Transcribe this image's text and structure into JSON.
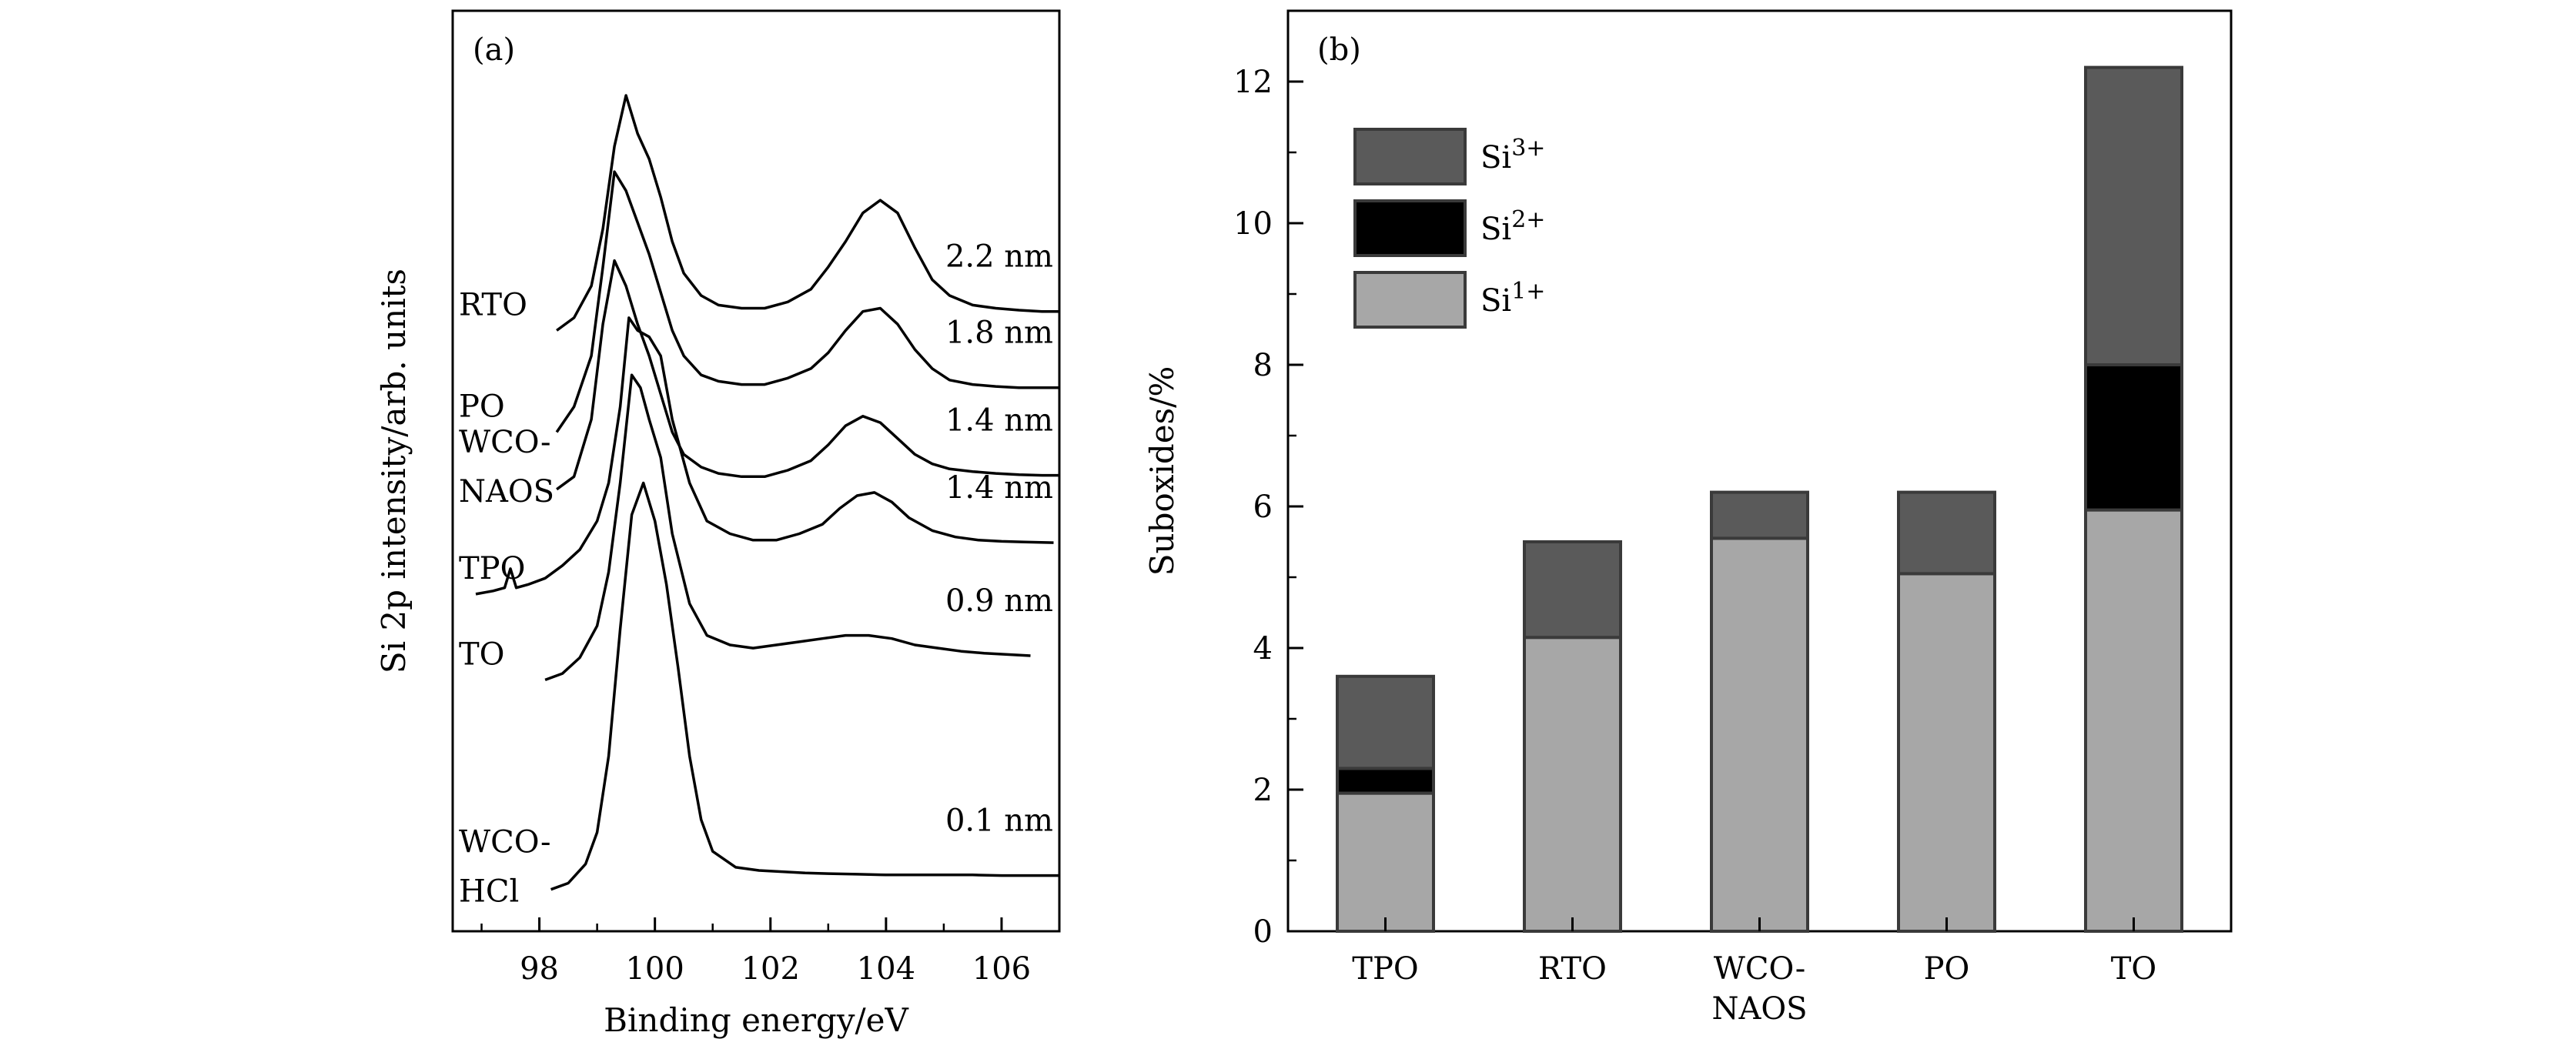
{
  "chart_data": [
    {
      "type": "line",
      "panel_label": "(a)",
      "xlabel": "Binding energy/eV",
      "ylabel": "Si 2p intensity/arb. units",
      "xlim": [
        96.5,
        107
      ],
      "x_ticks": [
        "98",
        "100",
        "102",
        "104",
        "106"
      ],
      "grid": false,
      "series": [
        {
          "name": "RTO",
          "thickness": "2.2 nm",
          "x": [
            98.3,
            98.6,
            98.9,
            99.1,
            99.3,
            99.5,
            99.7,
            99.9,
            100.1,
            100.3,
            100.5,
            100.8,
            101.1,
            101.5,
            101.9,
            102.3,
            102.7,
            103.0,
            103.3,
            103.6,
            103.9,
            104.2,
            104.5,
            104.8,
            105.1,
            105.5,
            105.9,
            106.3,
            106.7,
            107.0
          ],
          "y": [
            8.9,
            9.1,
            9.6,
            10.5,
            11.8,
            12.6,
            12.0,
            11.6,
            11.0,
            10.3,
            9.8,
            9.45,
            9.3,
            9.25,
            9.25,
            9.35,
            9.55,
            9.9,
            10.3,
            10.75,
            10.95,
            10.75,
            10.2,
            9.7,
            9.45,
            9.3,
            9.25,
            9.22,
            9.2,
            9.2
          ]
        },
        {
          "name": "PO",
          "thickness": "1.8 nm",
          "x": [
            98.3,
            98.6,
            98.9,
            99.1,
            99.3,
            99.5,
            99.7,
            99.9,
            100.1,
            100.3,
            100.5,
            100.8,
            101.1,
            101.5,
            101.9,
            102.3,
            102.7,
            103.0,
            103.3,
            103.6,
            103.9,
            104.2,
            104.5,
            104.8,
            105.1,
            105.5,
            105.9,
            106.3,
            106.7,
            107.0
          ],
          "y": [
            7.3,
            7.7,
            8.5,
            9.9,
            11.4,
            11.1,
            10.6,
            10.1,
            9.5,
            8.9,
            8.5,
            8.2,
            8.1,
            8.05,
            8.05,
            8.15,
            8.3,
            8.55,
            8.9,
            9.2,
            9.25,
            9.0,
            8.6,
            8.3,
            8.12,
            8.05,
            8.02,
            8.0,
            8.0,
            8.0
          ]
        },
        {
          "name": "WCO-NAOS",
          "thickness": "1.4 nm",
          "x": [
            98.3,
            98.6,
            98.9,
            99.1,
            99.3,
            99.5,
            99.7,
            99.9,
            100.1,
            100.3,
            100.5,
            100.8,
            101.1,
            101.5,
            101.9,
            102.3,
            102.7,
            103.0,
            103.3,
            103.6,
            103.9,
            104.2,
            104.5,
            104.8,
            105.1,
            105.5,
            105.9,
            106.3,
            106.7,
            107.0
          ],
          "y": [
            6.4,
            6.6,
            7.5,
            9.0,
            10.0,
            9.6,
            9.0,
            8.5,
            7.9,
            7.3,
            6.95,
            6.75,
            6.65,
            6.6,
            6.6,
            6.7,
            6.85,
            7.1,
            7.4,
            7.55,
            7.45,
            7.2,
            6.95,
            6.8,
            6.72,
            6.68,
            6.65,
            6.63,
            6.62,
            6.62
          ]
        },
        {
          "name": "TPO",
          "thickness": "1.4 nm",
          "x": [
            96.9,
            97.2,
            97.4,
            97.5,
            97.6,
            97.8,
            98.1,
            98.4,
            98.7,
            99.0,
            99.2,
            99.4,
            99.55,
            99.7,
            99.9,
            100.1,
            100.3,
            100.6,
            100.9,
            101.3,
            101.7,
            102.1,
            102.5,
            102.9,
            103.2,
            103.5,
            103.8,
            104.1,
            104.4,
            104.8,
            105.2,
            105.6,
            106.0,
            106.4,
            106.9
          ],
          "y": [
            4.75,
            4.8,
            4.85,
            5.15,
            4.85,
            4.9,
            5.0,
            5.2,
            5.45,
            5.9,
            6.5,
            7.7,
            9.1,
            8.9,
            8.8,
            8.5,
            7.5,
            6.5,
            5.9,
            5.7,
            5.6,
            5.6,
            5.7,
            5.85,
            6.1,
            6.3,
            6.35,
            6.2,
            5.95,
            5.75,
            5.65,
            5.6,
            5.58,
            5.57,
            5.56
          ]
        },
        {
          "name": "TO",
          "thickness": "0.9 nm",
          "x": [
            98.1,
            98.4,
            98.7,
            99.0,
            99.2,
            99.4,
            99.6,
            99.75,
            99.9,
            100.1,
            100.3,
            100.6,
            100.9,
            101.3,
            101.7,
            102.1,
            102.5,
            102.9,
            103.3,
            103.7,
            104.1,
            104.5,
            104.9,
            105.3,
            105.7,
            106.1,
            106.5
          ],
          "y": [
            3.4,
            3.5,
            3.75,
            4.25,
            5.1,
            6.5,
            8.2,
            8.0,
            7.5,
            6.9,
            5.7,
            4.6,
            4.1,
            3.95,
            3.9,
            3.95,
            4.0,
            4.05,
            4.1,
            4.1,
            4.05,
            3.95,
            3.9,
            3.85,
            3.82,
            3.8,
            3.78
          ]
        },
        {
          "name": "WCO-HCl",
          "thickness": "0.1 nm",
          "x": [
            98.2,
            98.5,
            98.8,
            99.0,
            99.2,
            99.4,
            99.6,
            99.8,
            100.0,
            100.2,
            100.4,
            100.6,
            100.8,
            101.0,
            101.4,
            101.8,
            102.2,
            102.6,
            103.0,
            103.5,
            104.0,
            104.5,
            105.0,
            105.5,
            106.0,
            106.5,
            107.0
          ],
          "y": [
            0.1,
            0.2,
            0.5,
            1.0,
            2.2,
            4.2,
            6.0,
            6.5,
            5.9,
            4.9,
            3.6,
            2.2,
            1.2,
            0.7,
            0.45,
            0.4,
            0.38,
            0.36,
            0.35,
            0.34,
            0.33,
            0.33,
            0.33,
            0.33,
            0.32,
            0.32,
            0.32
          ]
        }
      ],
      "left_labels": [
        {
          "lines": [
            "RTO"
          ],
          "series": "RTO"
        },
        {
          "lines": [
            "PO"
          ],
          "series": "PO"
        },
        {
          "lines": [
            "WCO-",
            "NAOS"
          ],
          "series": "WCO-NAOS"
        },
        {
          "lines": [
            "TPO"
          ],
          "series": "TPO"
        },
        {
          "lines": [
            "TO"
          ],
          "series": "TO"
        },
        {
          "lines": [
            "WCO-",
            "HCl"
          ],
          "series": "WCO-HCl"
        }
      ]
    },
    {
      "type": "bar",
      "stacked": true,
      "panel_label": "(b)",
      "ylabel": "Suboxides/%",
      "xlabel": "",
      "ylim": [
        0,
        13
      ],
      "y_ticks": [
        0,
        2,
        4,
        6,
        8,
        10,
        12
      ],
      "grid": false,
      "legend_position": "top-left",
      "categories": [
        [
          "TPO"
        ],
        [
          "RTO"
        ],
        [
          "WCO-",
          "NAOS"
        ],
        [
          "PO"
        ],
        [
          "TO"
        ]
      ],
      "series": [
        {
          "name": "Si",
          "superscript": "1+",
          "color": "#a7a7a7",
          "values": [
            1.95,
            4.15,
            5.55,
            5.05,
            5.95
          ]
        },
        {
          "name": "Si",
          "superscript": "2+",
          "color": "#000000",
          "values": [
            0.35,
            0.0,
            0.0,
            0.0,
            2.05
          ]
        },
        {
          "name": "Si",
          "superscript": "3+",
          "color": "#5a5a5a",
          "values": [
            1.3,
            1.35,
            0.65,
            1.15,
            4.2
          ]
        }
      ],
      "legend_order": [
        2,
        1,
        0
      ]
    }
  ]
}
